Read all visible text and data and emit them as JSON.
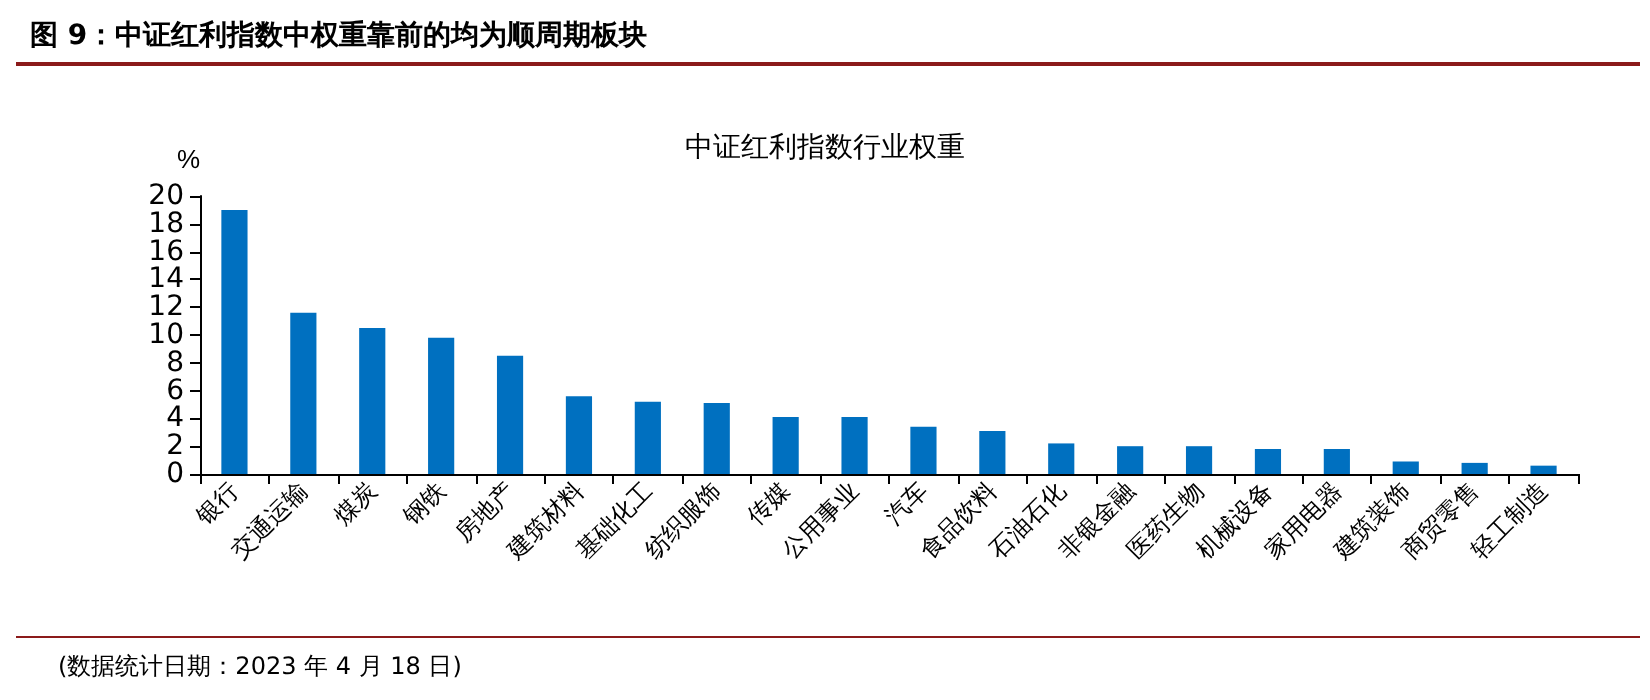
{
  "chart_data": {
    "type": "bar",
    "title": "图 9：中证红利指数中权重靠前的均为顺周期板块",
    "subtitle": "中证红利指数行业权重",
    "ylabel": "%",
    "categories": [
      "银行",
      "交通运输",
      "煤炭",
      "钢铁",
      "房地产",
      "建筑材料",
      "基础化工",
      "纺织服饰",
      "传媒",
      "公用事业",
      "汽车",
      "食品饮料",
      "石油石化",
      "非银金融",
      "医药生物",
      "机械设备",
      "家用电器",
      "建筑装饰",
      "商贸零售",
      "轻工制造"
    ],
    "values": [
      19.0,
      11.6,
      10.5,
      9.8,
      8.5,
      5.6,
      5.2,
      5.1,
      4.1,
      4.1,
      3.4,
      3.1,
      2.2,
      2.0,
      2.0,
      1.8,
      1.8,
      0.9,
      0.8,
      0.6
    ],
    "color": "#0070c0",
    "ylim": [
      0,
      20
    ],
    "yticks": [
      0,
      2,
      4,
      6,
      8,
      10,
      12,
      14,
      16,
      18,
      20
    ],
    "grid": false,
    "annotations": [
      "(数据统计日期：2023 年 4 月 18 日)"
    ]
  }
}
